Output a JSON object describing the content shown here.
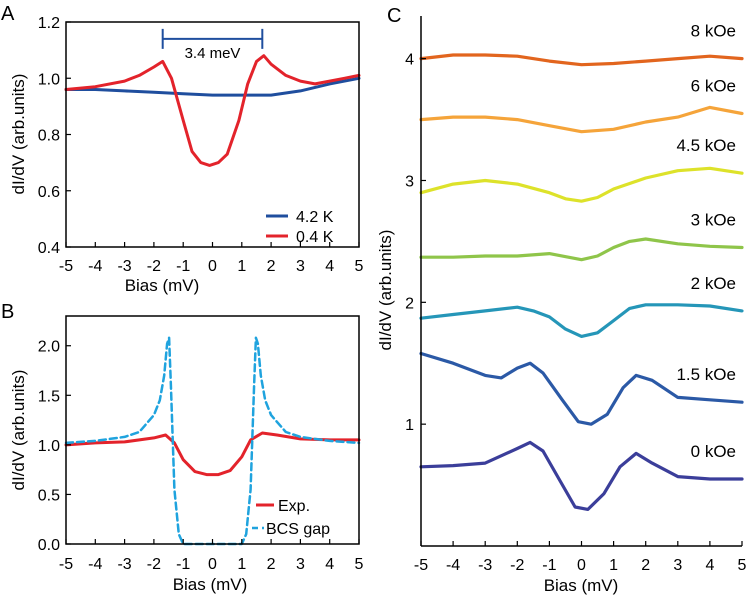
{
  "chart_data": [
    {
      "panel": "A",
      "type": "line",
      "ylabel": "dI/dV  (arb.units)",
      "xlabel": "Bias  (mV)",
      "xlim": [
        -5,
        5
      ],
      "ylim": [
        0.4,
        1.2
      ],
      "xticks": [
        -5,
        -4,
        -3,
        -2,
        -1,
        0,
        1,
        2,
        3,
        4,
        5
      ],
      "yticks": [
        0.4,
        0.6,
        0.8,
        1.0,
        1.2
      ],
      "ytick_labels": [
        "0.4",
        "0.6",
        "0.8",
        "1.0",
        "1.2"
      ],
      "annotation": "3.4 meV",
      "annotation_range": [
        -1.7,
        1.7
      ],
      "annotation_y": 1.14,
      "legend_position": "bottom-right",
      "series": [
        {
          "name": "4.2 K",
          "color": "#1f4e9e",
          "x": [
            -5,
            -4,
            -3,
            -2,
            -1,
            0,
            1,
            2,
            3,
            4,
            5
          ],
          "y": [
            0.96,
            0.96,
            0.955,
            0.95,
            0.945,
            0.94,
            0.94,
            0.94,
            0.955,
            0.98,
            1.0
          ]
        },
        {
          "name": "0.4 K",
          "color": "#e3232b",
          "x": [
            -5,
            -4,
            -3,
            -2.5,
            -2,
            -1.7,
            -1.4,
            -1,
            -0.7,
            -0.4,
            -0.1,
            0.2,
            0.5,
            0.9,
            1.2,
            1.5,
            1.75,
            2,
            2.5,
            3,
            3.5,
            4,
            4.5,
            5
          ],
          "y": [
            0.96,
            0.97,
            0.99,
            1.01,
            1.04,
            1.06,
            1.0,
            0.85,
            0.74,
            0.7,
            0.69,
            0.7,
            0.73,
            0.85,
            0.98,
            1.06,
            1.08,
            1.05,
            1.01,
            0.99,
            0.98,
            0.99,
            1.0,
            1.01
          ]
        }
      ]
    },
    {
      "panel": "B",
      "type": "line",
      "ylabel": "dI/dV  (arb.units)",
      "xlabel": "Bias  (mV)",
      "xlim": [
        -5,
        5
      ],
      "ylim": [
        0,
        2.3
      ],
      "xticks": [
        -5,
        -4,
        -3,
        -2,
        -1,
        0,
        1,
        2,
        3,
        4,
        5
      ],
      "yticks": [
        0.0,
        0.5,
        1.0,
        1.5,
        2.0
      ],
      "ytick_labels": [
        "0.0",
        "0.5",
        "1.0",
        "1.5",
        "2.0"
      ],
      "legend_position": "bottom-right",
      "series": [
        {
          "name": "Exp.",
          "color": "#e3232b",
          "x": [
            -5,
            -4,
            -3,
            -2,
            -1.6,
            -1.3,
            -1,
            -0.6,
            -0.2,
            0.2,
            0.6,
            1,
            1.3,
            1.7,
            2.2,
            3,
            4,
            5
          ],
          "y": [
            1.0,
            1.02,
            1.03,
            1.07,
            1.1,
            1.02,
            0.85,
            0.73,
            0.7,
            0.7,
            0.74,
            0.88,
            1.05,
            1.12,
            1.1,
            1.06,
            1.05,
            1.05
          ]
        },
        {
          "name": "BCS gap",
          "color": "#1fa3de",
          "x": [
            -5,
            -4,
            -3,
            -2.5,
            -2,
            -1.8,
            -1.65,
            -1.55,
            -1.48,
            -1.42,
            -1.3,
            -1.15,
            -1,
            1,
            1.15,
            1.3,
            1.42,
            1.48,
            1.55,
            1.65,
            1.8,
            2,
            2.5,
            3,
            4,
            5
          ],
          "y": [
            1.02,
            1.04,
            1.08,
            1.13,
            1.3,
            1.45,
            1.7,
            2.02,
            2.08,
            1.6,
            0.55,
            0.1,
            0.0,
            0.0,
            0.1,
            0.55,
            1.6,
            2.08,
            2.02,
            1.7,
            1.45,
            1.3,
            1.13,
            1.08,
            1.04,
            1.02
          ]
        }
      ]
    },
    {
      "panel": "C",
      "type": "line",
      "ylabel": "dI/dV  (arb.units)",
      "xlabel": "Bias  (mV)",
      "xlim": [
        -5,
        5
      ],
      "ylim": [
        0,
        4.35
      ],
      "xticks": [
        -5,
        -4,
        -3,
        -2,
        -1,
        0,
        1,
        2,
        3,
        4,
        5
      ],
      "yticks": [
        1,
        2,
        3,
        4
      ],
      "ytick_labels": [
        "1",
        "2",
        "3",
        "4"
      ],
      "series": [
        {
          "name": "0 kOe",
          "color": "#3b3e9a",
          "x": [
            -5,
            -4,
            -3,
            -2,
            -1.6,
            -1.2,
            -0.7,
            -0.2,
            0.2,
            0.7,
            1.2,
            1.7,
            2.2,
            3,
            4,
            5
          ],
          "y": [
            0.65,
            0.66,
            0.68,
            0.8,
            0.85,
            0.78,
            0.55,
            0.32,
            0.3,
            0.43,
            0.65,
            0.76,
            0.68,
            0.57,
            0.55,
            0.55
          ]
        },
        {
          "name": "1.5 kOe",
          "color": "#2b59a6",
          "x": [
            -5,
            -4,
            -3,
            -2.5,
            -2,
            -1.6,
            -1.2,
            -0.6,
            -0.1,
            0.3,
            0.8,
            1.3,
            1.7,
            2.2,
            3,
            4,
            5
          ],
          "y": [
            1.58,
            1.5,
            1.4,
            1.38,
            1.46,
            1.5,
            1.42,
            1.2,
            1.02,
            1.0,
            1.08,
            1.3,
            1.4,
            1.36,
            1.22,
            1.2,
            1.18
          ]
        },
        {
          "name": "2 kOe",
          "color": "#2596b8",
          "x": [
            -5,
            -4,
            -3,
            -2,
            -1.5,
            -1,
            -0.5,
            0,
            0.5,
            1,
            1.5,
            2,
            3,
            4,
            5
          ],
          "y": [
            1.87,
            1.9,
            1.93,
            1.96,
            1.93,
            1.88,
            1.78,
            1.72,
            1.75,
            1.85,
            1.95,
            1.98,
            1.98,
            1.97,
            1.93
          ]
        },
        {
          "name": "3 kOe",
          "color": "#8fc54a",
          "x": [
            -5,
            -4,
            -3,
            -2,
            -1,
            0,
            0.5,
            1,
            1.5,
            2,
            3,
            4,
            5
          ],
          "y": [
            2.37,
            2.37,
            2.38,
            2.38,
            2.4,
            2.35,
            2.38,
            2.45,
            2.5,
            2.52,
            2.48,
            2.46,
            2.45
          ]
        },
        {
          "name": "4.5 kOe",
          "color": "#dde22a",
          "x": [
            -5,
            -4,
            -3,
            -2,
            -1,
            -0.5,
            0,
            0.5,
            1,
            2,
            3,
            4,
            5
          ],
          "y": [
            2.9,
            2.97,
            3.0,
            2.97,
            2.9,
            2.85,
            2.83,
            2.86,
            2.93,
            3.02,
            3.08,
            3.1,
            3.06
          ]
        },
        {
          "name": "6 kOe",
          "color": "#f5a43a",
          "x": [
            -5,
            -4,
            -3,
            -2,
            -1,
            0,
            1,
            2,
            3,
            4,
            5
          ],
          "y": [
            3.5,
            3.52,
            3.52,
            3.5,
            3.45,
            3.4,
            3.42,
            3.48,
            3.52,
            3.6,
            3.55
          ]
        },
        {
          "name": "8 kOe",
          "color": "#e2651e",
          "x": [
            -5,
            -4,
            -3,
            -2,
            -1,
            0,
            1,
            2,
            3,
            4,
            5
          ],
          "y": [
            4.0,
            4.03,
            4.03,
            4.02,
            3.98,
            3.95,
            3.96,
            3.98,
            4.0,
            4.02,
            4.0
          ]
        }
      ]
    }
  ],
  "panel_labels": [
    "A",
    "B",
    "C"
  ]
}
